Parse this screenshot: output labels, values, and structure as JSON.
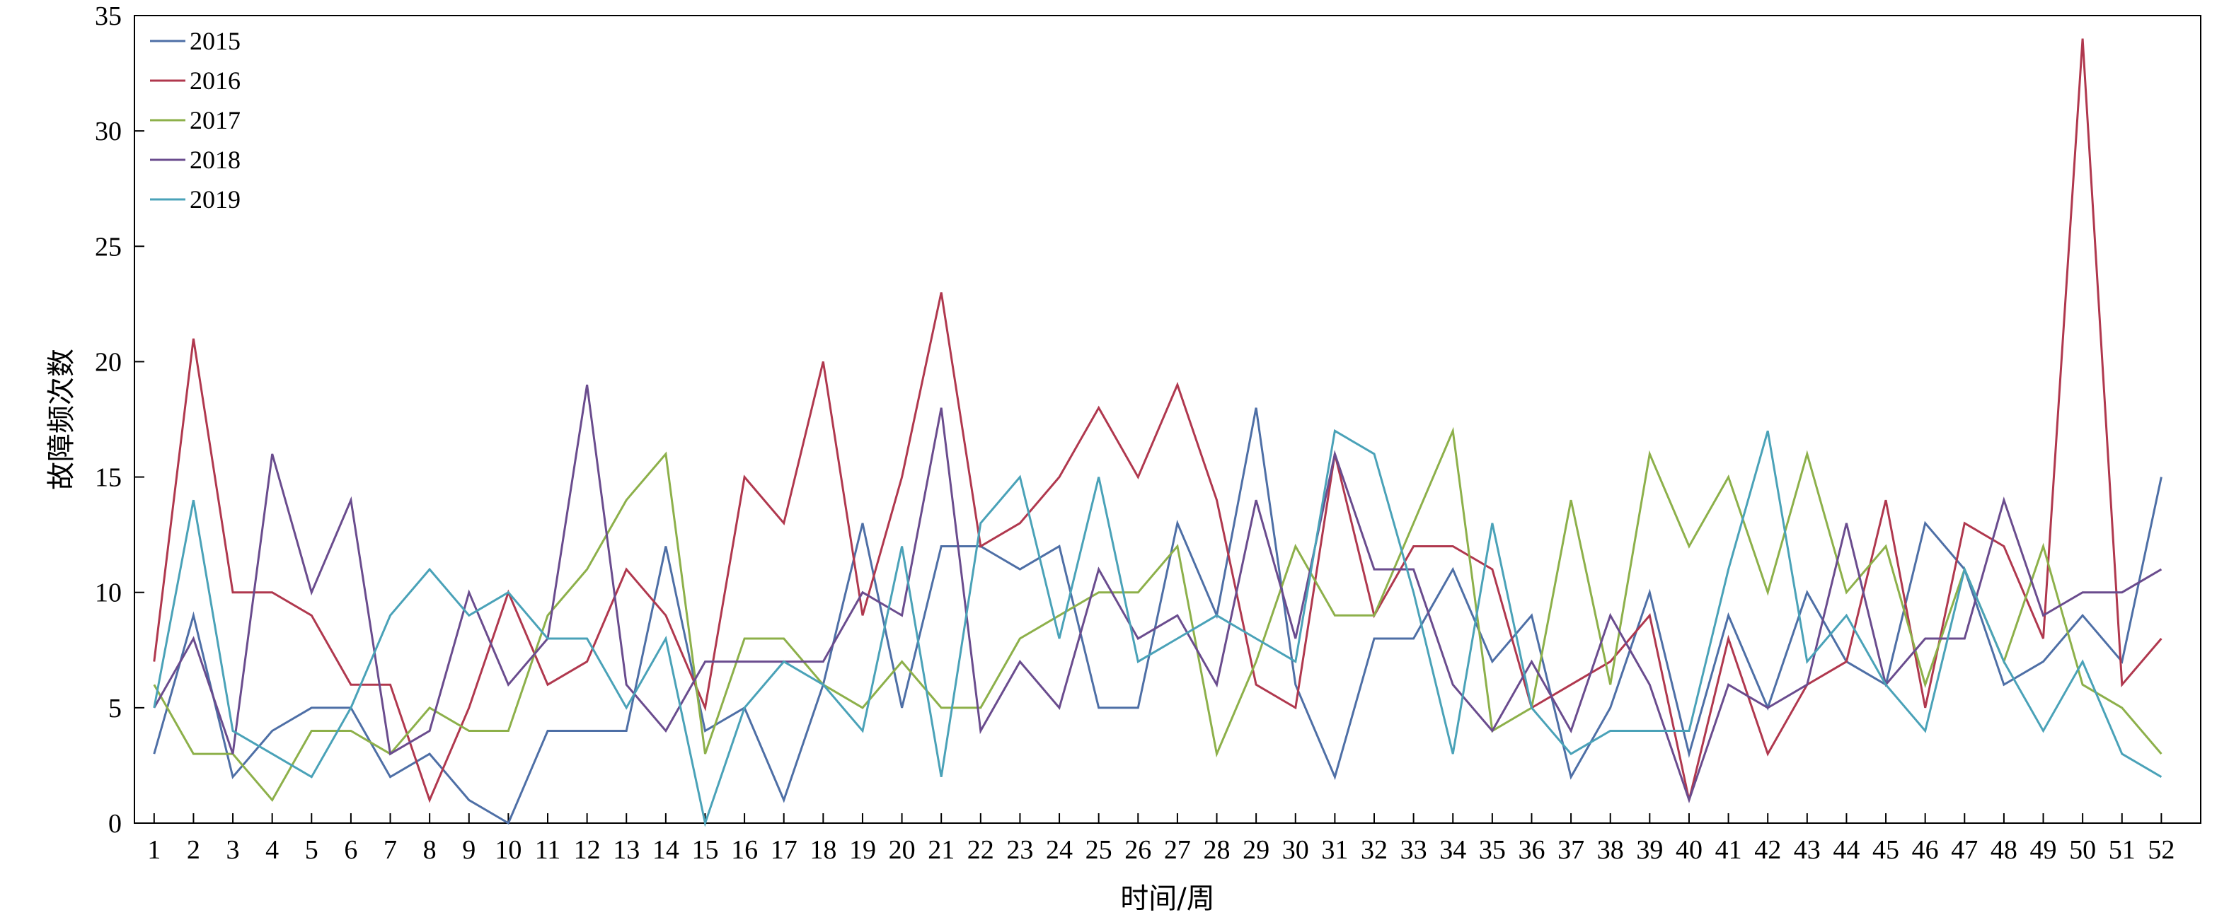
{
  "chart_data": {
    "type": "line",
    "title": "",
    "xlabel": "时间/周",
    "ylabel": "故障频次数",
    "x": [
      1,
      2,
      3,
      4,
      5,
      6,
      7,
      8,
      9,
      10,
      11,
      12,
      13,
      14,
      15,
      16,
      17,
      18,
      19,
      20,
      21,
      22,
      23,
      24,
      25,
      26,
      27,
      28,
      29,
      30,
      31,
      32,
      33,
      34,
      35,
      36,
      37,
      38,
      39,
      40,
      41,
      42,
      43,
      44,
      45,
      46,
      47,
      48,
      49,
      50,
      51,
      52
    ],
    "xlim": [
      0.5,
      53
    ],
    "ylim": [
      0,
      35
    ],
    "yticks": [
      0,
      5,
      10,
      15,
      20,
      25,
      30,
      35
    ],
    "grid": false,
    "legend_position": "top-left",
    "series": [
      {
        "name": "2015",
        "color": "#4e6fa6",
        "values": [
          3,
          9,
          2,
          4,
          5,
          5,
          2,
          3,
          1,
          0,
          4,
          4,
          4,
          12,
          4,
          5,
          1,
          6,
          13,
          5,
          12,
          12,
          11,
          12,
          5,
          5,
          13,
          9,
          18,
          6,
          2,
          8,
          8,
          11,
          7,
          9,
          2,
          5,
          10,
          3,
          9,
          5,
          10,
          7,
          6,
          13,
          11,
          6,
          7,
          9,
          7,
          15
        ]
      },
      {
        "name": "2016",
        "color": "#b0384e",
        "values": [
          7,
          21,
          10,
          10,
          9,
          6,
          6,
          1,
          5,
          10,
          6,
          7,
          11,
          9,
          5,
          15,
          13,
          20,
          9,
          15,
          23,
          12,
          13,
          15,
          18,
          15,
          19,
          14,
          6,
          5,
          16,
          9,
          12,
          12,
          11,
          5,
          6,
          7,
          9,
          1,
          8,
          3,
          6,
          7,
          14,
          5,
          13,
          12,
          8,
          34,
          6,
          8
        ]
      },
      {
        "name": "2017",
        "color": "#8db04a",
        "values": [
          6,
          3,
          3,
          1,
          4,
          4,
          3,
          5,
          4,
          4,
          9,
          11,
          14,
          16,
          3,
          8,
          8,
          6,
          5,
          7,
          5,
          5,
          8,
          9,
          10,
          10,
          12,
          3,
          7,
          12,
          9,
          9,
          13,
          17,
          4,
          5,
          14,
          6,
          16,
          12,
          15,
          10,
          16,
          10,
          12,
          6,
          11,
          7,
          12,
          6,
          5,
          3
        ]
      },
      {
        "name": "2018",
        "color": "#6a4c8e",
        "values": [
          5,
          8,
          3,
          16,
          10,
          14,
          3,
          4,
          10,
          6,
          8,
          19,
          6,
          4,
          7,
          7,
          7,
          7,
          10,
          9,
          18,
          4,
          7,
          5,
          11,
          8,
          9,
          6,
          14,
          8,
          16,
          11,
          11,
          6,
          4,
          7,
          4,
          9,
          6,
          1,
          6,
          5,
          6,
          13,
          6,
          8,
          8,
          14,
          9,
          10,
          10,
          11
        ]
      },
      {
        "name": "2019",
        "color": "#4aa2b8",
        "values": [
          5,
          14,
          4,
          3,
          2,
          5,
          9,
          11,
          9,
          10,
          8,
          8,
          5,
          8,
          0,
          5,
          7,
          6,
          4,
          12,
          2,
          13,
          15,
          8,
          15,
          7,
          8,
          9,
          8,
          7,
          17,
          16,
          10,
          3,
          13,
          5,
          3,
          4,
          4,
          4,
          11,
          17,
          7,
          9,
          6,
          4,
          11,
          7,
          4,
          7,
          3,
          2
        ]
      }
    ]
  }
}
